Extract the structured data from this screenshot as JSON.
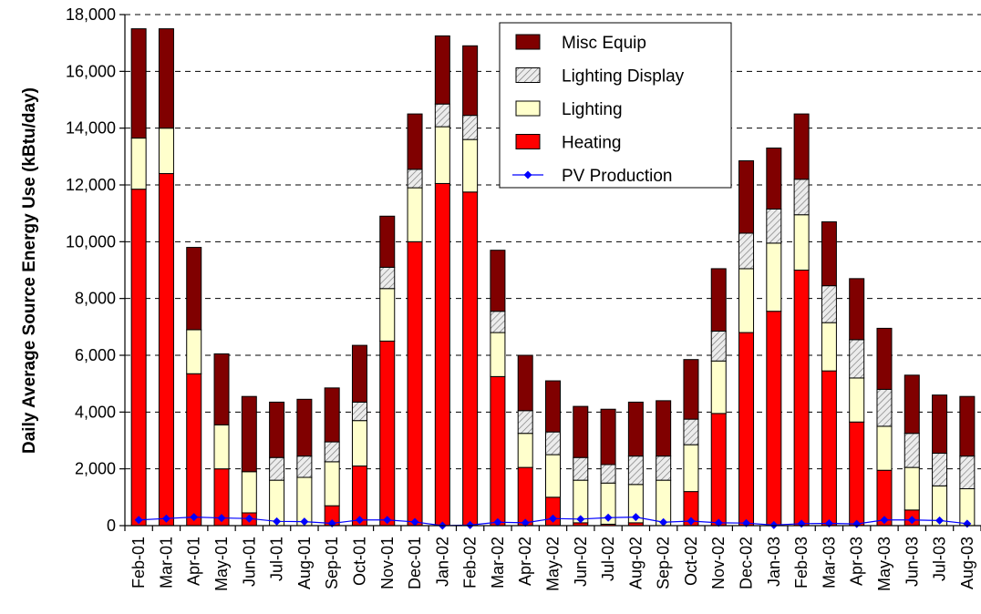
{
  "chart_data": {
    "type": "bar",
    "stacked": true,
    "ylabel": "Daily Average Source Energy Use (kBtu/day)",
    "xlabel": "",
    "ylim": [
      0,
      18000
    ],
    "yticks": [
      0,
      2000,
      4000,
      6000,
      8000,
      10000,
      12000,
      14000,
      16000,
      18000
    ],
    "ytick_labels": [
      "0",
      "2,000",
      "4,000",
      "6,000",
      "8,000",
      "10,000",
      "12,000",
      "14,000",
      "16,000",
      "18,000"
    ],
    "grid": "horizontal dashed",
    "legend_position": "top-center",
    "categories": [
      "Feb-01",
      "Mar-01",
      "Apr-01",
      "May-01",
      "Jun-01",
      "Jul-01",
      "Aug-01",
      "Sep-01",
      "Oct-01",
      "Nov-01",
      "Dec-01",
      "Jan-02",
      "Feb-02",
      "Mar-02",
      "Apr-02",
      "May-02",
      "Jun-02",
      "Jul-02",
      "Aug-02",
      "Sep-02",
      "Oct-02",
      "Nov-02",
      "Dec-02",
      "Jan-03",
      "Feb-03",
      "Mar-03",
      "Apr-03",
      "May-03",
      "Jun-03",
      "Jul-03",
      "Aug-03"
    ],
    "series": [
      {
        "name": "Heating",
        "color": "#ff0000",
        "values": [
          11850,
          12400,
          5350,
          2000,
          450,
          0,
          0,
          700,
          2100,
          6500,
          10000,
          12050,
          11750,
          5250,
          2050,
          1000,
          100,
          50,
          100,
          0,
          1200,
          3950,
          6800,
          7550,
          9000,
          5450,
          3650,
          1950,
          550,
          0,
          0
        ]
      },
      {
        "name": "Lighting",
        "color": "#ffffcc",
        "values": [
          1800,
          1600,
          1550,
          1550,
          1450,
          1600,
          1700,
          1550,
          1600,
          1850,
          1900,
          2000,
          1850,
          1550,
          1200,
          1500,
          1500,
          1450,
          1350,
          1600,
          1650,
          1850,
          2250,
          2400,
          1950,
          1700,
          1550,
          1550,
          1500,
          1400,
          1300
        ]
      },
      {
        "name": "Lighting Display",
        "color": "#d8d8d8",
        "pattern": "hatched",
        "values": [
          0,
          0,
          0,
          0,
          0,
          800,
          750,
          700,
          650,
          750,
          650,
          800,
          850,
          750,
          800,
          800,
          800,
          650,
          1000,
          850,
          900,
          1050,
          1250,
          1200,
          1250,
          1300,
          1350,
          1300,
          1200,
          1150,
          1150
        ]
      },
      {
        "name": "Misc Equip",
        "color": "#800000",
        "values": [
          3850,
          3500,
          2900,
          2500,
          2650,
          1950,
          2000,
          1900,
          2000,
          1800,
          1950,
          2400,
          2450,
          2150,
          1950,
          1800,
          1800,
          1950,
          1900,
          1950,
          2100,
          2200,
          2550,
          2150,
          2300,
          2250,
          2150,
          2150,
          2050,
          2050,
          2100
        ]
      },
      {
        "name": "PV Production",
        "color": "#0000ff",
        "type": "line",
        "marker": "diamond",
        "values": [
          200,
          250,
          300,
          270,
          250,
          150,
          140,
          80,
          200,
          200,
          130,
          0,
          20,
          120,
          100,
          250,
          230,
          280,
          300,
          120,
          160,
          100,
          90,
          20,
          70,
          80,
          60,
          200,
          200,
          180,
          70
        ]
      }
    ],
    "legend_order": [
      "Misc Equip",
      "Lighting Display",
      "Lighting",
      "Heating",
      "PV Production"
    ]
  }
}
